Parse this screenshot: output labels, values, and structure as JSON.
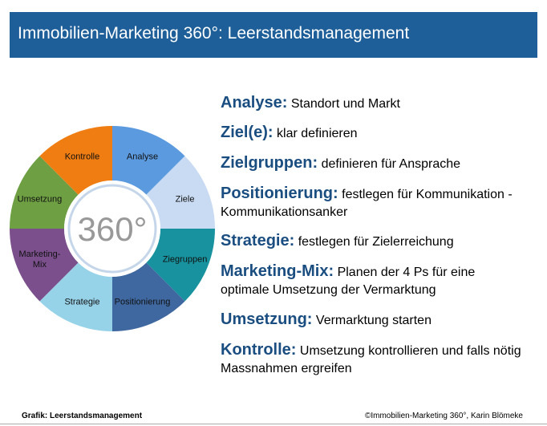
{
  "header": {
    "title": "Immobilien-Marketing 360°: Leerstandsmanagement"
  },
  "wheel": {
    "center_label": "360°",
    "segments": [
      {
        "label": "Analyse",
        "color": "#5b9ade"
      },
      {
        "label": "Ziele",
        "color": "#c9dbf2"
      },
      {
        "label": "Ziegruppen",
        "color": "#17929e"
      },
      {
        "label": "Positionierung",
        "color": "#3f68a0"
      },
      {
        "label": "Strategie",
        "color": "#97d3e8"
      },
      {
        "label": "Marketing-\nMix",
        "color": "#7a4f8c"
      },
      {
        "label": "Umsetzung",
        "color": "#6ea043"
      },
      {
        "label": "Kontrolle",
        "color": "#f07d12"
      }
    ]
  },
  "items": [
    {
      "heading": "Analyse:",
      "text": "Standort und Markt"
    },
    {
      "heading": "Ziel(e):",
      "text": "klar definieren"
    },
    {
      "heading": "Zielgruppen:",
      "text": "definieren für Ansprache"
    },
    {
      "heading": "Positionierung:",
      "text": "festlegen für Kommunikation - Kommunikationsanker"
    },
    {
      "heading": "Strategie:",
      "text": "festlegen für Zielerreichung"
    },
    {
      "heading": "Marketing-Mix:",
      "text": "Planen der 4 Ps für eine optimale Umsetzung der Vermarktung"
    },
    {
      "heading": "Umsetzung:",
      "text": "Vermarktung starten"
    },
    {
      "heading": "Kontrolle:",
      "text": "Umsetzung kontrollieren und falls nötig Massnahmen ergreifen"
    }
  ],
  "footer": {
    "left": "Grafik: Leerstandsmanagement",
    "right": "©Immobilien-Marketing 360°, Karin Blömeke"
  }
}
